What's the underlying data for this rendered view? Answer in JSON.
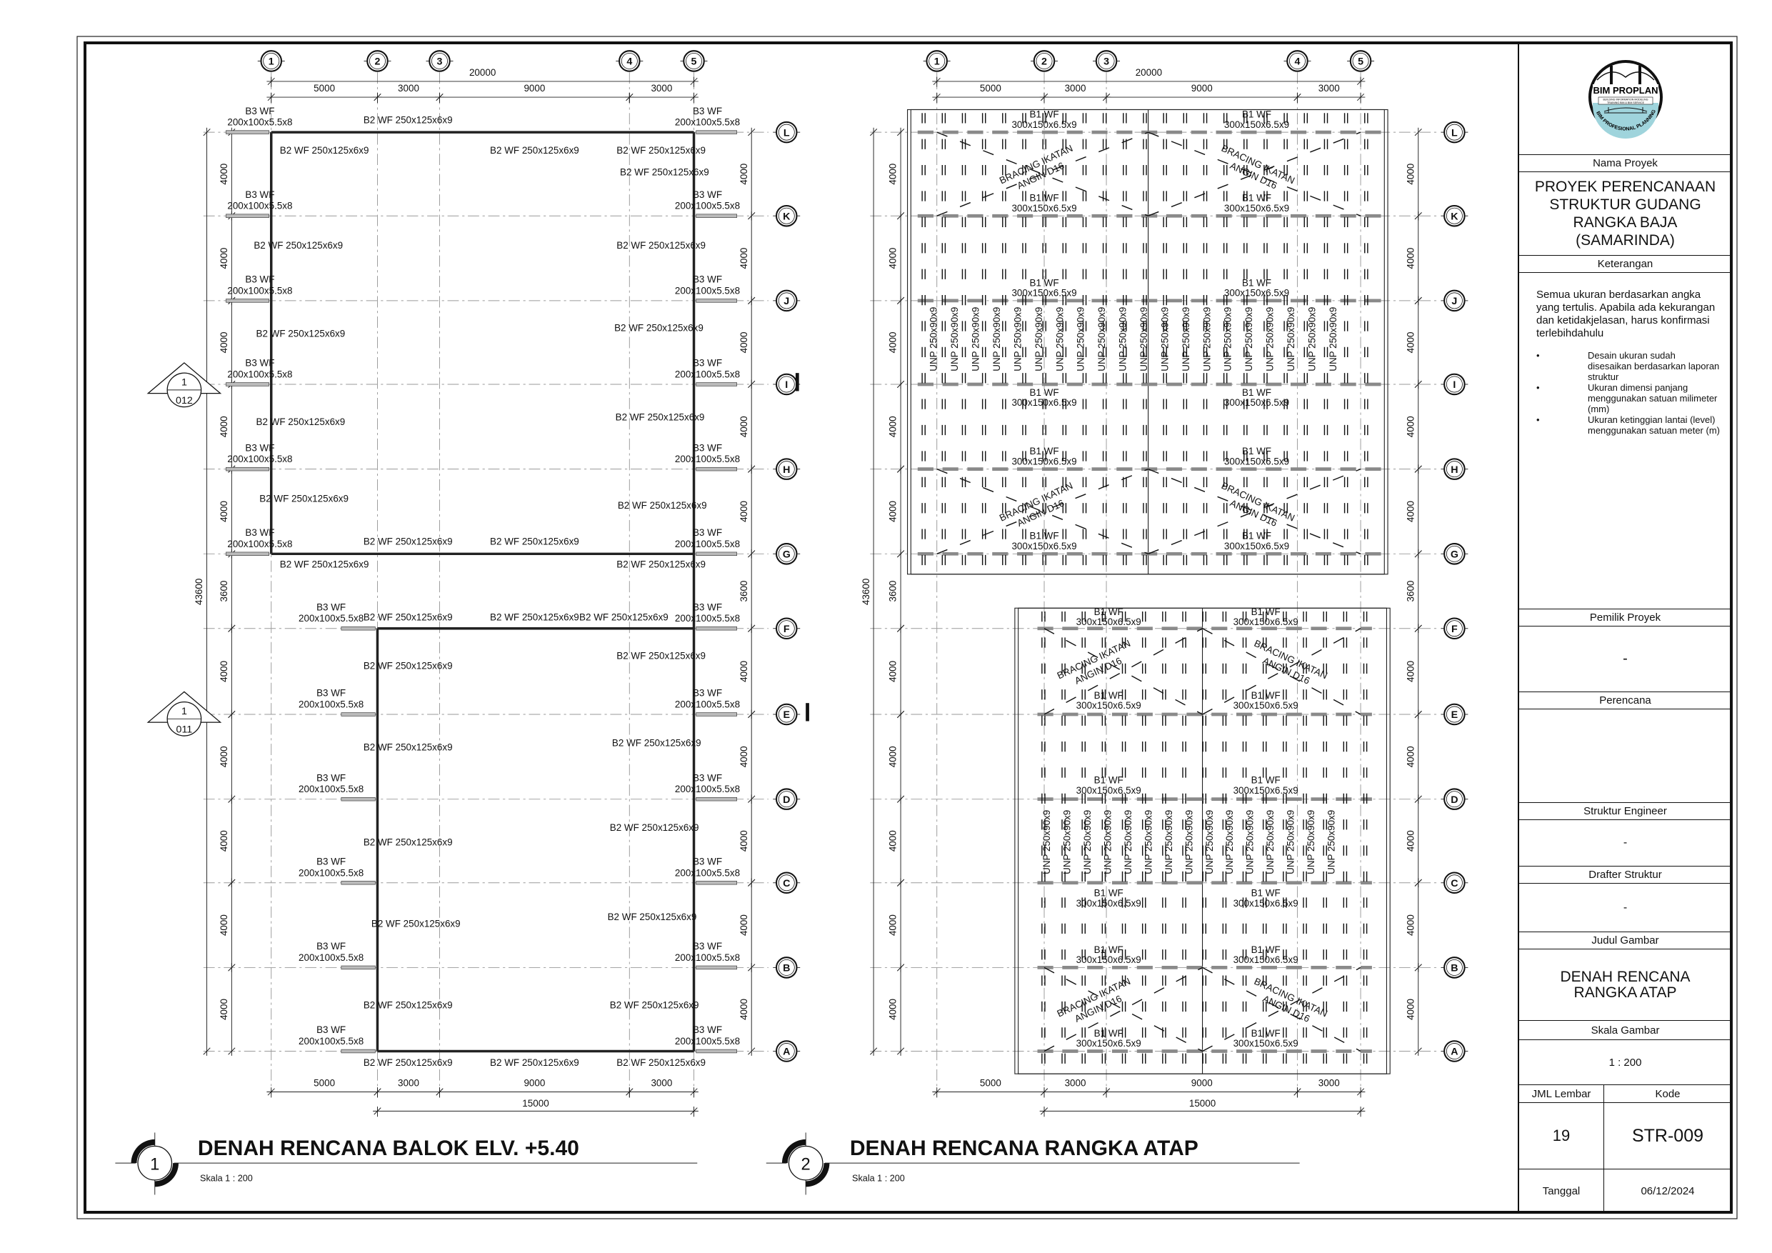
{
  "grid": {
    "columns": [
      "1",
      "2",
      "3",
      "4",
      "5"
    ],
    "rows": [
      "L",
      "K",
      "J",
      "I",
      "H",
      "G",
      "F",
      "E",
      "D",
      "C",
      "B",
      "A"
    ]
  },
  "dimensions": {
    "top_total": "20000",
    "spans_x": [
      "5000",
      "3000",
      "9000",
      "3000"
    ],
    "bottom_total": "15000",
    "spans_y": [
      "4000",
      "4000",
      "4000",
      "4000",
      "4000",
      "3600",
      "4000",
      "4000",
      "4000",
      "4000",
      "4000"
    ],
    "total_y": "43600"
  },
  "plan_1": {
    "number": "1",
    "title": "DENAH RENCANA BALOK ELV. +5.40",
    "scale": "Skala  1 : 200",
    "beam_b3": [
      "B3 WF",
      "200x100x5.5x8"
    ],
    "beam_b2": "B2 WF 250x125x6x9",
    "section_markers": [
      {
        "number": "1",
        "sheet": "012"
      },
      {
        "number": "1",
        "sheet": "011"
      }
    ]
  },
  "plan_2": {
    "number": "2",
    "title": "DENAH RENCANA RANGKA ATAP",
    "scale": "Skala  1 : 200",
    "rafter": [
      "B1 WF",
      "300x150x6.5x9"
    ],
    "purlin": "UNP 250x90x9",
    "bracing": [
      "BRACING IKATAN",
      "ANGIN D16"
    ]
  },
  "title_block": {
    "logo": {
      "name": "BIM PROPLAN",
      "tagline_1": "BUILDING INFORMATION MODELING",
      "tagline_2": "TRAINING BIM & BIM SERVICE",
      "arc_text": "BIM PROFESIONAL PLANNING"
    },
    "project_label": "Nama Proyek",
    "project_name": [
      "PROYEK PERENCANAAN",
      "STRUKTUR GUDANG",
      "RANGKA BAJA",
      "(SAMARINDA)"
    ],
    "notes_label": "Keterangan",
    "notes_text": "Semua ukuran berdasarkan angka yang tertulis. Apabila ada kekurangan dan ketidakjelasan, harus konfirmasi terlebihdahulu",
    "notes_bullets": [
      "Desain ukuran sudah disesaikan berdasarkan laporan struktur",
      "Ukuran dimensi panjang menggunakan satuan milimeter (mm)",
      "Ukuran ketinggian lantai (level) menggunakan satuan meter (m)"
    ],
    "bullet": "•",
    "owner_label": "Pemilik Proyek",
    "owner": "-",
    "planner_label": "Perencana",
    "planner": "",
    "engineer_label": "Struktur Engineer",
    "engineer": "-",
    "drafter_label": "Drafter Struktur",
    "drafter": "-",
    "drawing_title_label": "Judul Gambar",
    "drawing_title": [
      "DENAH RENCANA",
      "RANGKA ATAP"
    ],
    "scale_label": "Skala Gambar",
    "scale": "1 : 200",
    "sheets_label": "JML Lembar",
    "code_label": "Kode",
    "sheets": "19",
    "code": "STR-009",
    "date_label": "Tanggal",
    "date": "06/12/2024"
  }
}
